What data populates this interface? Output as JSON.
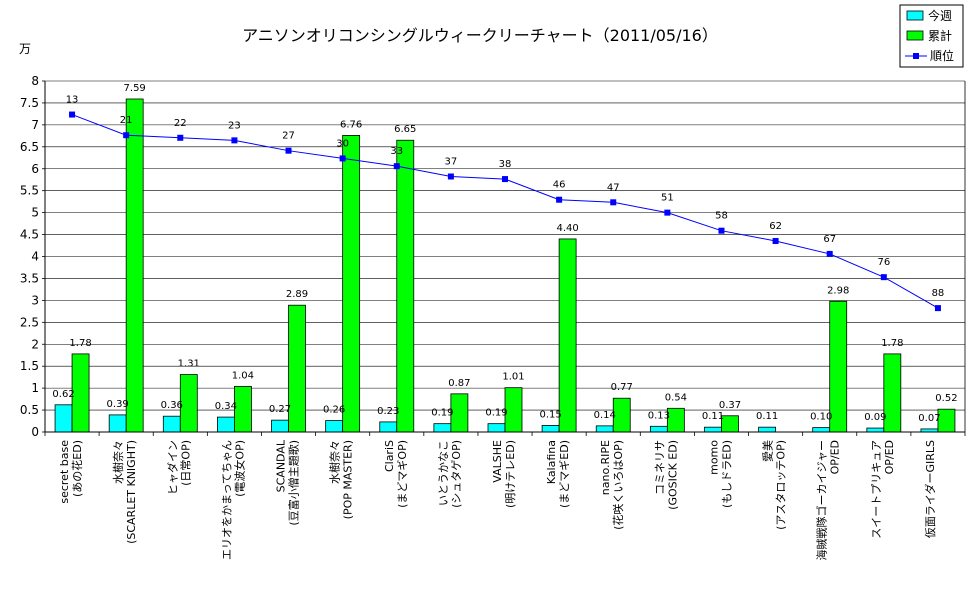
{
  "chart_data": {
    "type": "bar",
    "title": "アニソンオリコンシングルウィークリーチャート（2011/05/16）",
    "y_unit": "万",
    "ylim": [
      0,
      8
    ],
    "yticks": [
      "0",
      "0.5",
      "1",
      "1.5",
      "2",
      "2.5",
      "3",
      "3.5",
      "4",
      "4.5",
      "5",
      "5.5",
      "6",
      "6.5",
      "7",
      "7.5",
      "8"
    ],
    "rank_range": [
      0,
      136
    ],
    "grid": true,
    "legend_position": "top-right",
    "categories": [
      [
        "secret base",
        "(あの花ED)"
      ],
      [
        "水樹奈々",
        "(SCARLET KNIGHT)"
      ],
      [
        "ヒャダイン",
        "(日常OP)"
      ],
      [
        "エリオをかまってちゃん",
        "(電波女OP)"
      ],
      [
        "SCANDAL",
        "(豆富小僧主題歌)"
      ],
      [
        "水樹奈々",
        "(POP MASTER)"
      ],
      [
        "ClariS",
        "(まどマギOP)"
      ],
      [
        "いとうかなこ",
        "(シュタゲOP)"
      ],
      [
        "VALSHE",
        "(明けテレED)"
      ],
      [
        "Kalafina",
        "(まどマギED)"
      ],
      [
        "nano.RIPE",
        "(花咲くいろはOP)"
      ],
      [
        "コミネリサ",
        "(GOSICK ED)"
      ],
      [
        "momo",
        "(もしドラED)"
      ],
      [
        "愛美",
        "(アスタロッテOP)"
      ],
      [
        "海賊戦隊ゴーカイジャー",
        "OP/ED"
      ],
      [
        "スイートプリキュア",
        "OP/ED"
      ],
      [
        "仮面ライダーGIRLS",
        ""
      ]
    ],
    "series": [
      {
        "name": "今週",
        "color": "#00ffff",
        "values": [
          0.62,
          0.39,
          0.36,
          0.34,
          0.27,
          0.26,
          0.23,
          0.19,
          0.19,
          0.15,
          0.14,
          0.13,
          0.11,
          0.11,
          0.1,
          0.09,
          0.07
        ],
        "labels": [
          "0.62",
          "0.39",
          "0.36",
          "0.34",
          "0.27",
          "0.26",
          "0.23",
          "0.19",
          "0.19",
          "0.15",
          "0.14",
          "0.13",
          "0.11",
          "0.11",
          "0.10",
          "0.09",
          "0.07"
        ]
      },
      {
        "name": "累計",
        "color": "#00ff00",
        "values": [
          1.78,
          7.59,
          1.31,
          1.04,
          2.89,
          6.76,
          6.65,
          0.87,
          1.01,
          4.4,
          0.77,
          0.54,
          0.37,
          null,
          2.98,
          1.78,
          0.52
        ],
        "labels": [
          "1.78",
          "7.59",
          "1.31",
          "1.04",
          "2.89",
          "6.76",
          "6.65",
          "0.87",
          "1.01",
          "4.40",
          "0.77",
          "0.54",
          "0.37",
          "",
          "2.98",
          "1.78",
          "0.52"
        ]
      },
      {
        "name": "順位",
        "color": "#0000ff",
        "type": "line",
        "values": [
          13,
          21,
          22,
          23,
          27,
          30,
          33,
          37,
          38,
          46,
          47,
          51,
          58,
          62,
          67,
          76,
          88
        ],
        "labels": [
          "13",
          "21",
          "22",
          "23",
          "27",
          "30",
          "33",
          "37",
          "38",
          "46",
          "47",
          "51",
          "58",
          "62",
          "67",
          "76",
          "88"
        ]
      }
    ]
  }
}
